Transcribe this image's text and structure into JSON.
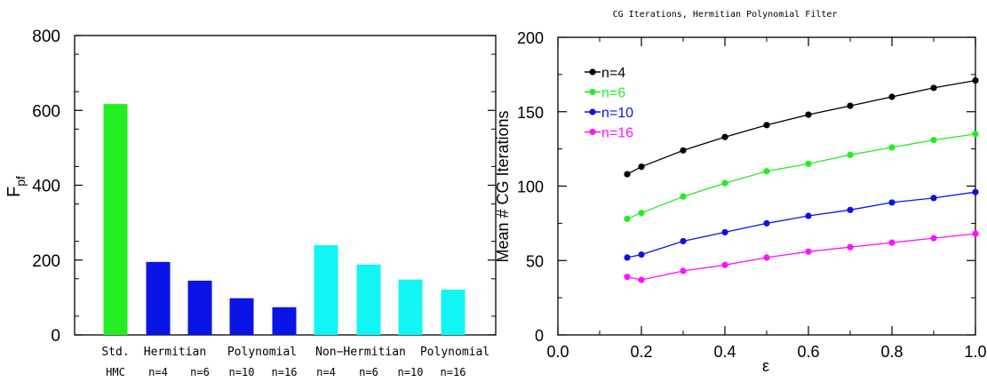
{
  "chart_data": [
    {
      "type": "bar",
      "ylabel": "F",
      "ylabel_sub": "pf",
      "ylim": [
        0,
        800
      ],
      "yticks": [
        0,
        200,
        400,
        600,
        800
      ],
      "categories": [
        "Std. HMC",
        "Hermitian n=4",
        "Hermitian n=6",
        "Hermitian n=10",
        "Hermitian n=16",
        "Non-Hermitian n=4",
        "Non-Hermitian n=6",
        "Non-Hermitian n=10",
        "Non-Hermitian n=16"
      ],
      "values": [
        617,
        195,
        145,
        98,
        74,
        240,
        188,
        148,
        121
      ],
      "bar_colors": [
        "#22ee22",
        "#0a14e6",
        "#0a14e6",
        "#0a14e6",
        "#0a14e6",
        "#11f5f5",
        "#11f5f5",
        "#11f5f5",
        "#11f5f5"
      ],
      "group_labels": [
        "Std.",
        "Hermitian",
        "Polynomial",
        "Non−Hermitian",
        "Polynomial"
      ],
      "bottom_labels": [
        "HMC",
        "n=4",
        "n=6",
        "n=10",
        "n=16",
        "n=4",
        "n=6",
        "n=10",
        "n=16"
      ]
    },
    {
      "type": "line",
      "title": "CG Iterations, Hermitian Polynomial Filter",
      "xlabel": "ε",
      "ylabel": "Mean # CG Iterations",
      "xlim": [
        0,
        1
      ],
      "ylim": [
        0,
        200
      ],
      "xticks": [
        "0.0",
        "0.2",
        "0.4",
        "0.6",
        "0.8",
        "1.0"
      ],
      "yticks": [
        0,
        50,
        100,
        150,
        200
      ],
      "x": [
        0.166,
        0.2,
        0.3,
        0.4,
        0.5,
        0.6,
        0.7,
        0.8,
        0.9,
        1.0
      ],
      "series": [
        {
          "name": "n=4",
          "color": "#000000",
          "values": [
            108,
            113,
            124,
            133,
            141,
            148,
            154,
            160,
            166,
            171
          ]
        },
        {
          "name": "n=6",
          "color": "#22ee22",
          "values": [
            78,
            82,
            93,
            102,
            110,
            115,
            121,
            126,
            131,
            135
          ]
        },
        {
          "name": "n=10",
          "color": "#0a14e6",
          "values": [
            52,
            54,
            63,
            69,
            75,
            80,
            84,
            89,
            92,
            96
          ]
        },
        {
          "name": "n=16",
          "color": "#ff11ff",
          "values": [
            39,
            37,
            43,
            47,
            52,
            56,
            59,
            62,
            65,
            68
          ]
        }
      ],
      "legend_position": "top-left"
    }
  ]
}
